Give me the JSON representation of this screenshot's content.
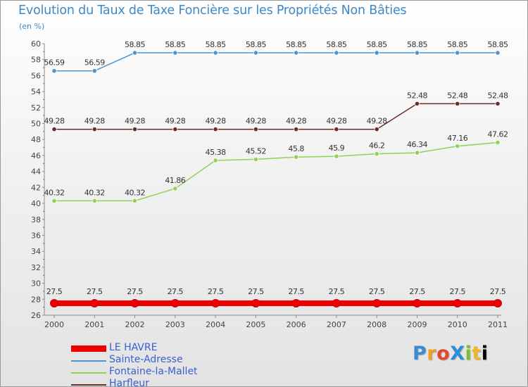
{
  "header": {
    "title": "Evolution du Taux de Taxe Foncière sur les Propriétés Non Bâties",
    "unit": "(en %)"
  },
  "logo": {
    "text": "ProXiti",
    "letters": [
      "P",
      "r",
      "o",
      "X",
      "i",
      "t",
      "i"
    ]
  },
  "chart_data": {
    "type": "line",
    "title": "Evolution du Taux de Taxe Foncière sur les Propriétés Non Bâties",
    "xlabel": "",
    "ylabel": "(en %)",
    "ylim": [
      26,
      60
    ],
    "yticks": [
      26,
      28,
      30,
      32,
      34,
      36,
      38,
      40,
      42,
      44,
      46,
      48,
      50,
      52,
      54,
      56,
      58,
      60
    ],
    "grid": false,
    "categories": [
      "2000",
      "2001",
      "2002",
      "2003",
      "2004",
      "2005",
      "2006",
      "2007",
      "2008",
      "2009",
      "2010",
      "2011"
    ],
    "series": [
      {
        "name": "LE HAVRE",
        "color": "#ee0000",
        "values": [
          27.5,
          27.5,
          27.5,
          27.5,
          27.5,
          27.5,
          27.5,
          27.5,
          27.5,
          27.5,
          27.5,
          27.5
        ],
        "labels": [
          "27.5",
          "27.5",
          "27.5",
          "27.5",
          "27.5",
          "27.5",
          "27.5",
          "27.5",
          "27.5",
          "27.5",
          "27.5",
          "27.5"
        ]
      },
      {
        "name": "Sainte-Adresse",
        "color": "#4f94cd",
        "values": [
          56.59,
          56.59,
          58.85,
          58.85,
          58.85,
          58.85,
          58.85,
          58.85,
          58.85,
          58.85,
          58.85,
          58.85
        ],
        "labels": [
          "56.59",
          "56.59",
          "58.85",
          "58.85",
          "58.85",
          "58.85",
          "58.85",
          "58.85",
          "58.85",
          "58.85",
          "58.85",
          "58.85"
        ]
      },
      {
        "name": "Fontaine-la-Mallet",
        "color": "#8fd15a",
        "values": [
          40.32,
          40.32,
          40.32,
          41.86,
          45.38,
          45.52,
          45.8,
          45.9,
          46.2,
          46.34,
          47.16,
          47.62
        ],
        "labels": [
          "40.32",
          "40.32",
          "40.32",
          "41.86",
          "45.38",
          "45.52",
          "45.8",
          "45.9",
          "46.2",
          "46.34",
          "47.16",
          "47.62"
        ]
      },
      {
        "name": "Harfleur",
        "color": "#6b2c2c",
        "values": [
          49.28,
          49.28,
          49.28,
          49.28,
          49.28,
          49.28,
          49.28,
          49.28,
          49.28,
          52.48,
          52.48,
          52.48
        ],
        "labels": [
          "49.28",
          "49.28",
          "49.28",
          "49.28",
          "49.28",
          "49.28",
          "49.28",
          "49.28",
          "49.28",
          "52.48",
          "52.48",
          "52.48"
        ]
      }
    ]
  }
}
